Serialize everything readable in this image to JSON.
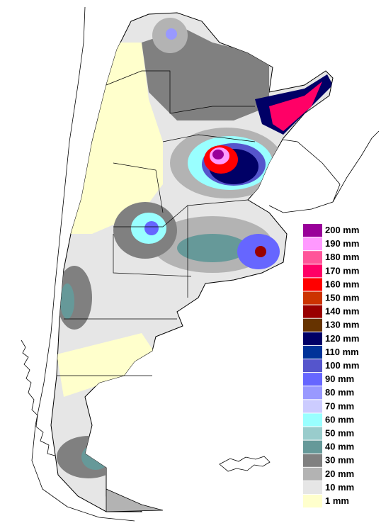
{
  "legend": [
    {
      "label": "200 mm",
      "color": "#990099"
    },
    {
      "label": "190 mm",
      "color": "#ff99ff"
    },
    {
      "label": "180 mm",
      "color": "#ff5599"
    },
    {
      "label": "170 mm",
      "color": "#ff0066"
    },
    {
      "label": "160 mm",
      "color": "#ff0000"
    },
    {
      "label": "150 mm",
      "color": "#cc3300"
    },
    {
      "label": "140 mm",
      "color": "#990000"
    },
    {
      "label": "130 mm",
      "color": "#663300"
    },
    {
      "label": "120 mm",
      "color": "#000066"
    },
    {
      "label": "110 mm",
      "color": "#003399"
    },
    {
      "label": "100 mm",
      "color": "#5555cc"
    },
    {
      "label": "90 mm",
      "color": "#6666ff"
    },
    {
      "label": "80 mm",
      "color": "#9999ff"
    },
    {
      "label": "70 mm",
      "color": "#ccccff"
    },
    {
      "label": "60 mm",
      "color": "#99ffff"
    },
    {
      "label": "50 mm",
      "color": "#99cccc"
    },
    {
      "label": "40 mm",
      "color": "#669999"
    },
    {
      "label": "30 mm",
      "color": "#808080"
    },
    {
      "label": "20 mm",
      "color": "#b3b3b3"
    },
    {
      "label": "10 mm",
      "color": "#e6e6e6"
    },
    {
      "label": "1 mm",
      "color": "#ffffcc"
    }
  ]
}
